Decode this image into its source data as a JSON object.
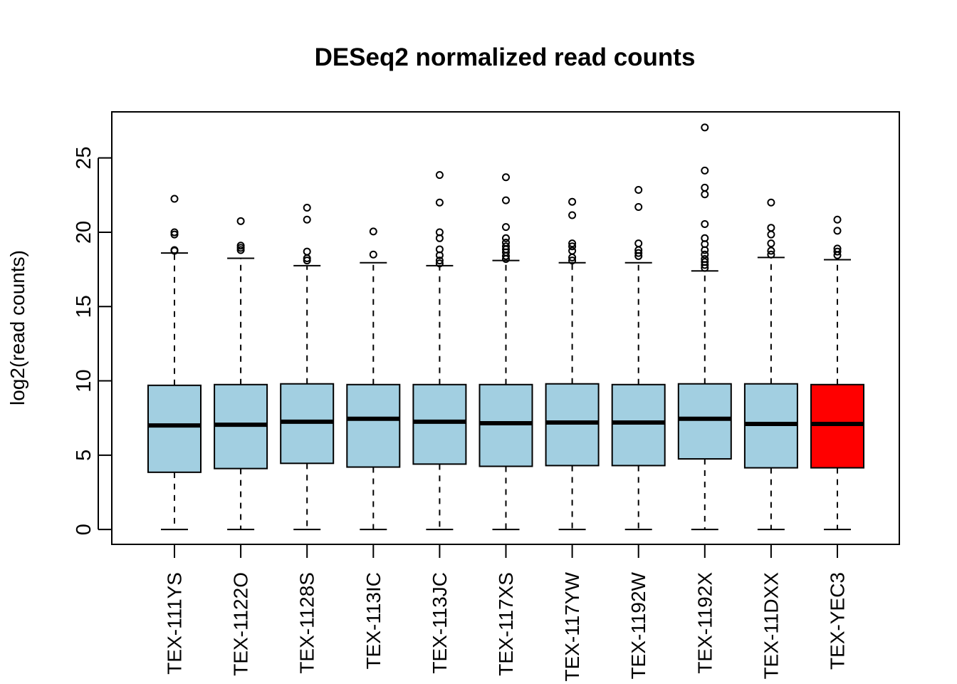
{
  "chart_data": {
    "type": "boxplot",
    "title": "DESeq2 normalized read counts",
    "xlabel": "",
    "ylabel": "log2(read counts)",
    "ylim": [
      -1,
      28.1
    ],
    "yticks": [
      0,
      5,
      10,
      15,
      20,
      25
    ],
    "grid": false,
    "default_color": "#a2cfe1",
    "highlight_color": "#ff0000",
    "categories": [
      "TEX-111YS",
      "TEX-1122O",
      "TEX-1128S",
      "TEX-113IC",
      "TEX-113JC",
      "TEX-117XS",
      "TEX-117YW",
      "TEX-1192W",
      "TEX-1192X",
      "TEX-11DXX",
      "TEX-YEC3"
    ],
    "boxes": [
      {
        "name": "TEX-111YS",
        "lower_whisker": 0,
        "q1": 3.85,
        "median": 7.0,
        "q3": 9.7,
        "upper_whisker": 18.6,
        "outliers": [
          18.75,
          18.8,
          19.85,
          20.0,
          22.25
        ],
        "color": "#a2cfe1"
      },
      {
        "name": "TEX-1122O",
        "lower_whisker": 0,
        "q1": 4.1,
        "median": 7.05,
        "q3": 9.75,
        "upper_whisker": 18.25,
        "outliers": [
          18.8,
          18.95,
          19.1,
          20.75
        ],
        "color": "#a2cfe1"
      },
      {
        "name": "TEX-1128S",
        "lower_whisker": 0,
        "q1": 4.45,
        "median": 7.25,
        "q3": 9.8,
        "upper_whisker": 17.75,
        "outliers": [
          18.1,
          18.25,
          18.7,
          20.85,
          21.65
        ],
        "color": "#a2cfe1"
      },
      {
        "name": "TEX-113IC",
        "lower_whisker": 0,
        "q1": 4.2,
        "median": 7.45,
        "q3": 9.75,
        "upper_whisker": 17.95,
        "outliers": [
          18.5,
          20.05
        ],
        "color": "#a2cfe1"
      },
      {
        "name": "TEX-113JC",
        "lower_whisker": 0,
        "q1": 4.4,
        "median": 7.25,
        "q3": 9.75,
        "upper_whisker": 17.75,
        "outliers": [
          17.9,
          18.1,
          18.45,
          18.85,
          19.6,
          20.0,
          22.0,
          23.85
        ],
        "color": "#a2cfe1"
      },
      {
        "name": "TEX-117XS",
        "lower_whisker": 0,
        "q1": 4.25,
        "median": 7.15,
        "q3": 9.75,
        "upper_whisker": 18.1,
        "outliers": [
          18.2,
          18.4,
          18.65,
          18.85,
          19.05,
          19.3,
          19.6,
          20.35,
          22.15,
          23.7
        ],
        "color": "#a2cfe1"
      },
      {
        "name": "TEX-117YW",
        "lower_whisker": 0,
        "q1": 4.3,
        "median": 7.2,
        "q3": 9.8,
        "upper_whisker": 17.95,
        "outliers": [
          18.1,
          18.3,
          18.75,
          19.05,
          19.25,
          21.15,
          22.05
        ],
        "color": "#a2cfe1"
      },
      {
        "name": "TEX-1192W",
        "lower_whisker": 0,
        "q1": 4.3,
        "median": 7.2,
        "q3": 9.75,
        "upper_whisker": 17.95,
        "outliers": [
          18.4,
          18.6,
          18.8,
          19.25,
          21.7,
          22.85
        ],
        "color": "#a2cfe1"
      },
      {
        "name": "TEX-1192X",
        "lower_whisker": 0,
        "q1": 4.75,
        "median": 7.45,
        "q3": 9.8,
        "upper_whisker": 17.4,
        "outliers": [
          17.6,
          17.8,
          18.0,
          18.2,
          18.5,
          18.8,
          19.2,
          19.6,
          20.55,
          22.55,
          23.0,
          24.15,
          27.05
        ],
        "color": "#a2cfe1"
      },
      {
        "name": "TEX-11DXX",
        "lower_whisker": 0,
        "q1": 4.15,
        "median": 7.1,
        "q3": 9.8,
        "upper_whisker": 18.3,
        "outliers": [
          18.5,
          18.75,
          19.25,
          19.85,
          20.3,
          22.0
        ],
        "color": "#a2cfe1"
      },
      {
        "name": "TEX-YEC3",
        "lower_whisker": 0,
        "q1": 4.15,
        "median": 7.1,
        "q3": 9.75,
        "upper_whisker": 18.15,
        "outliers": [
          18.45,
          18.7,
          18.9,
          20.1,
          20.85
        ],
        "color": "#ff0000"
      }
    ]
  }
}
